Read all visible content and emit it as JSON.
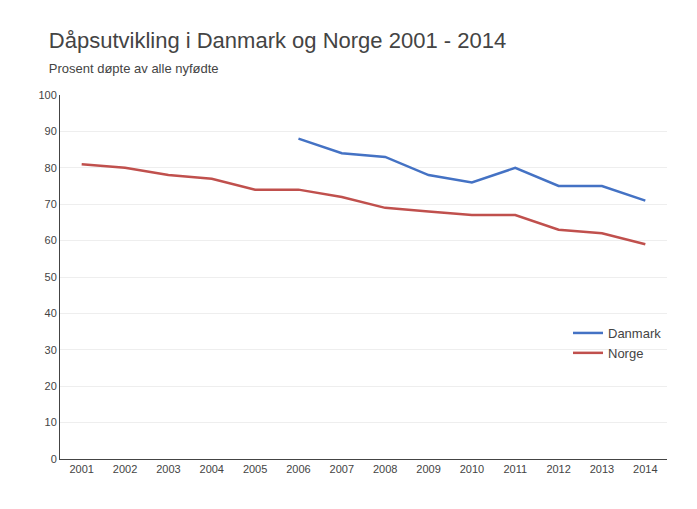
{
  "chart_data": {
    "type": "line",
    "title": "Dåpsutvikling i Danmark og Norge 2001 - 2014",
    "subtitle": "Prosent døpte av alle nyfødte",
    "x": [
      2001,
      2002,
      2003,
      2004,
      2005,
      2006,
      2007,
      2008,
      2009,
      2010,
      2011,
      2012,
      2013,
      2014
    ],
    "series": [
      {
        "name": "Danmark",
        "color": "#4472C4",
        "values": [
          null,
          null,
          null,
          null,
          null,
          88,
          84,
          83,
          78,
          76,
          80,
          75,
          75,
          71
        ]
      },
      {
        "name": "Norge",
        "color": "#C0504D",
        "values": [
          81,
          80,
          78,
          77,
          74,
          74,
          72,
          69,
          68,
          67,
          67,
          63,
          62,
          59
        ]
      }
    ],
    "xlim": [
      2000.5,
      2014.5
    ],
    "xticks": [
      2001,
      2002,
      2003,
      2004,
      2005,
      2006,
      2007,
      2008,
      2009,
      2010,
      2011,
      2012,
      2013,
      2014
    ],
    "ylim": [
      0,
      100
    ],
    "yticks": [
      0,
      10,
      20,
      30,
      40,
      50,
      60,
      70,
      80,
      90,
      100
    ],
    "grid": "y",
    "legend": "lower right"
  }
}
